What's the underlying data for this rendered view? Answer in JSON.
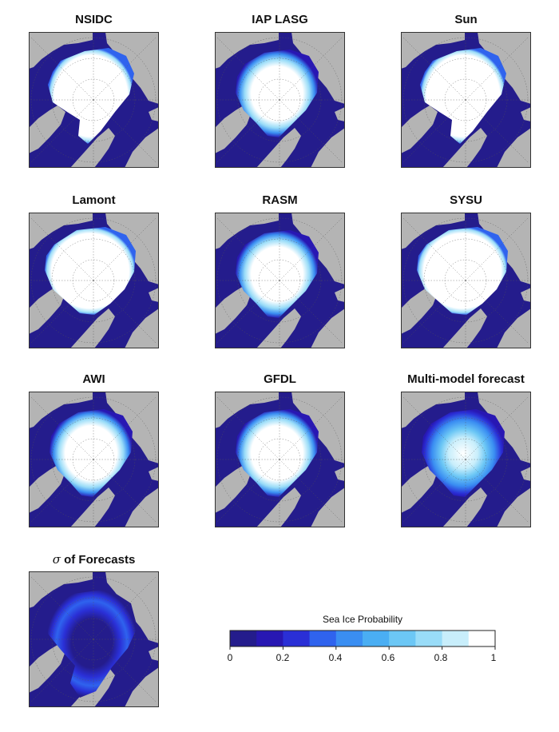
{
  "panels": [
    {
      "title": "NSIDC",
      "style": "obs"
    },
    {
      "title": "IAP LASG",
      "style": "smooth"
    },
    {
      "title": "Sun",
      "style": "obs"
    },
    {
      "title": "Lamont",
      "style": "full"
    },
    {
      "title": "RASM",
      "style": "smooth"
    },
    {
      "title": "SYSU",
      "style": "full"
    },
    {
      "title": "AWI",
      "style": "smooth"
    },
    {
      "title": "GFDL",
      "style": "smooth"
    },
    {
      "title": "Multi-model forecast",
      "style": "multi"
    },
    {
      "title_symbol": "σ",
      "title": "of Forecasts",
      "style": "sigma"
    }
  ],
  "colorbar": {
    "title": "Sea Ice Probability",
    "ticks": [
      "0",
      "0.2",
      "0.4",
      "0.6",
      "0.8",
      "1"
    ],
    "range": [
      0,
      1
    ],
    "bins": 10,
    "colors": [
      "#241c8c",
      "#2817b3",
      "#2a2fd6",
      "#2f63ee",
      "#3a8ef2",
      "#4aaef3",
      "#6cc7f5",
      "#99dcf8",
      "#c8eefb",
      "#ffffff"
    ]
  },
  "map_colors": {
    "ocean": "#241c8c",
    "land": "#b4b4b4",
    "ice": "#ffffff",
    "grid": "#555555"
  }
}
